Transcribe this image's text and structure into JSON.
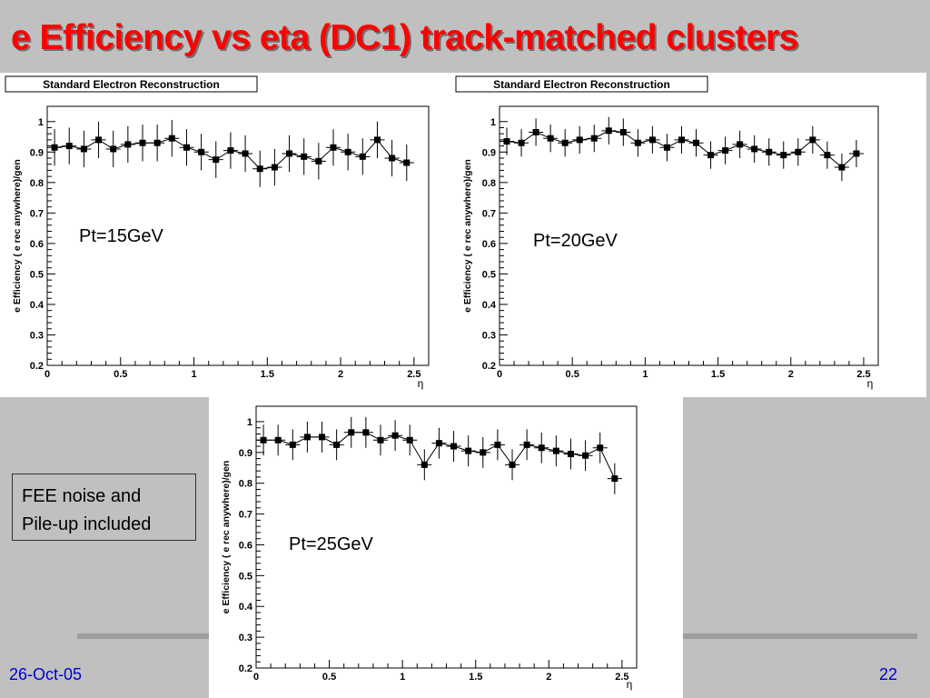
{
  "slide": {
    "title": "e Efficiency vs eta (DC1) track-matched clusters",
    "note_line1": "FEE noise and",
    "note_line2": "Pile-up included",
    "date": "26-Oct-05",
    "page": "22"
  },
  "chart_data": [
    {
      "type": "scatter",
      "title": "Standard Electron Reconstruction",
      "annotation": "Pt=15GeV",
      "xlabel": "η",
      "ylabel": "e Efficiency ( e rec anywhere)/gen",
      "xlim": [
        0,
        2.6
      ],
      "ylim": [
        0.2,
        1.05
      ],
      "xticks": [
        "0",
        "0.5",
        "1",
        "1.5",
        "2",
        "2.5"
      ],
      "yticks": [
        "0.2",
        "0.3",
        "0.4",
        "0.5",
        "0.6",
        "0.7",
        "0.8",
        "0.9",
        "1"
      ],
      "x": [
        0.05,
        0.15,
        0.25,
        0.35,
        0.45,
        0.55,
        0.65,
        0.75,
        0.85,
        0.95,
        1.05,
        1.15,
        1.25,
        1.35,
        1.45,
        1.55,
        1.65,
        1.75,
        1.85,
        1.95,
        2.05,
        2.15,
        2.25,
        2.35,
        2.45
      ],
      "y": [
        0.915,
        0.92,
        0.91,
        0.94,
        0.91,
        0.925,
        0.93,
        0.93,
        0.945,
        0.915,
        0.9,
        0.875,
        0.905,
        0.895,
        0.845,
        0.85,
        0.895,
        0.885,
        0.87,
        0.915,
        0.9,
        0.885,
        0.94,
        0.88,
        0.865
      ],
      "err": [
        0.06,
        0.06,
        0.06,
        0.06,
        0.06,
        0.06,
        0.06,
        0.06,
        0.06,
        0.06,
        0.06,
        0.06,
        0.06,
        0.06,
        0.06,
        0.06,
        0.06,
        0.06,
        0.06,
        0.06,
        0.06,
        0.06,
        0.06,
        0.06,
        0.06
      ]
    },
    {
      "type": "scatter",
      "title": "Standard Electron Reconstruction",
      "annotation": "Pt=20GeV",
      "xlabel": "η",
      "ylabel": "e Efficiency ( e rec anywhere)/gen",
      "xlim": [
        0,
        2.6
      ],
      "ylim": [
        0.2,
        1.05
      ],
      "xticks": [
        "0",
        "0.5",
        "1",
        "1.5",
        "2",
        "2.5"
      ],
      "yticks": [
        "0.2",
        "0.3",
        "0.4",
        "0.5",
        "0.6",
        "0.7",
        "0.8",
        "0.9",
        "1"
      ],
      "x": [
        0.05,
        0.15,
        0.25,
        0.35,
        0.45,
        0.55,
        0.65,
        0.75,
        0.85,
        0.95,
        1.05,
        1.15,
        1.25,
        1.35,
        1.45,
        1.55,
        1.65,
        1.75,
        1.85,
        1.95,
        2.05,
        2.15,
        2.25,
        2.35,
        2.45
      ],
      "y": [
        0.935,
        0.93,
        0.965,
        0.945,
        0.93,
        0.94,
        0.945,
        0.97,
        0.965,
        0.93,
        0.94,
        0.915,
        0.94,
        0.93,
        0.89,
        0.905,
        0.925,
        0.91,
        0.9,
        0.89,
        0.9,
        0.94,
        0.89,
        0.85,
        0.895
      ],
      "err": [
        0.045,
        0.045,
        0.045,
        0.045,
        0.045,
        0.045,
        0.045,
        0.045,
        0.045,
        0.045,
        0.045,
        0.045,
        0.045,
        0.045,
        0.045,
        0.045,
        0.045,
        0.045,
        0.045,
        0.045,
        0.045,
        0.045,
        0.045,
        0.045,
        0.045
      ]
    },
    {
      "type": "scatter",
      "title": "",
      "annotation": "Pt=25GeV",
      "xlabel": "η",
      "ylabel": "e Efficiency ( e rec anywhere)/gen",
      "xlim": [
        0,
        2.6
      ],
      "ylim": [
        0.2,
        1.05
      ],
      "xticks": [
        "0",
        "0.5",
        "1",
        "1.5",
        "2",
        "2.5"
      ],
      "yticks": [
        "0.2",
        "0.3",
        "0.4",
        "0.5",
        "0.6",
        "0.7",
        "0.8",
        "0.9",
        "1"
      ],
      "x": [
        0.05,
        0.15,
        0.25,
        0.35,
        0.45,
        0.55,
        0.65,
        0.75,
        0.85,
        0.95,
        1.05,
        1.15,
        1.25,
        1.35,
        1.45,
        1.55,
        1.65,
        1.75,
        1.85,
        1.95,
        2.05,
        2.15,
        2.25,
        2.35,
        2.45
      ],
      "y": [
        0.94,
        0.94,
        0.925,
        0.95,
        0.95,
        0.925,
        0.965,
        0.965,
        0.94,
        0.955,
        0.94,
        0.86,
        0.93,
        0.92,
        0.905,
        0.9,
        0.925,
        0.86,
        0.925,
        0.915,
        0.905,
        0.895,
        0.89,
        0.915,
        0.815
      ],
      "err": [
        0.05,
        0.05,
        0.05,
        0.05,
        0.05,
        0.05,
        0.05,
        0.05,
        0.05,
        0.05,
        0.05,
        0.05,
        0.05,
        0.05,
        0.05,
        0.05,
        0.05,
        0.05,
        0.05,
        0.05,
        0.05,
        0.05,
        0.05,
        0.05,
        0.05
      ]
    }
  ]
}
